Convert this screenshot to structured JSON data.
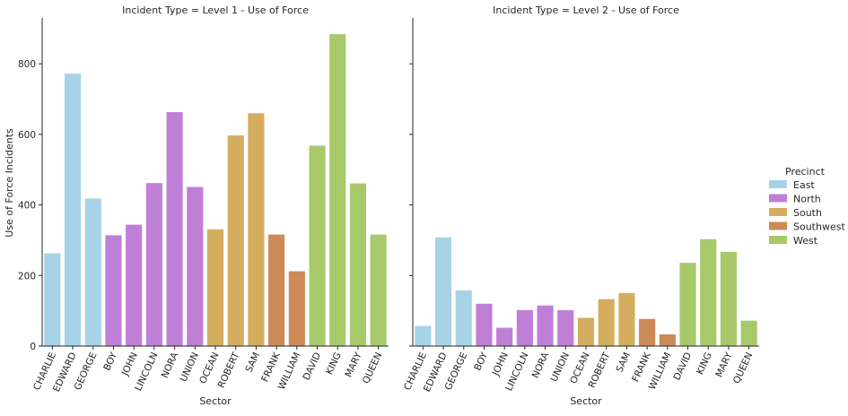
{
  "chart_data": {
    "type": "bar",
    "ylabel": "Use of Force Incidents",
    "xlabel": "Sector",
    "ylim": [
      0,
      930
    ],
    "yticks": [
      0,
      200,
      400,
      600,
      800
    ],
    "grid": false,
    "legend": {
      "title": "Precinct",
      "placement": "right",
      "entries": [
        {
          "name": "East",
          "color": "#a6d3e8"
        },
        {
          "name": "North",
          "color": "#c07fd6"
        },
        {
          "name": "South",
          "color": "#d4ae5e"
        },
        {
          "name": "Southwest",
          "color": "#cc8a58"
        },
        {
          "name": "West",
          "color": "#a8c96a"
        }
      ]
    },
    "categories": [
      "CHARLIE",
      "EDWARD",
      "GEORGE",
      "BOY",
      "JOHN",
      "LINCOLN",
      "NORA",
      "UNION",
      "OCEAN",
      "ROBERT",
      "SAM",
      "FRANK",
      "WILLIAM",
      "DAVID",
      "KING",
      "MARY",
      "QUEEN"
    ],
    "category_precinct": [
      "East",
      "East",
      "East",
      "North",
      "North",
      "North",
      "North",
      "North",
      "South",
      "South",
      "South",
      "Southwest",
      "Southwest",
      "West",
      "West",
      "West",
      "West"
    ],
    "panels": [
      {
        "title": "Incident Type = Level 1 - Use of Force",
        "values": [
          263,
          772,
          418,
          314,
          344,
          462,
          663,
          451,
          331,
          597,
          660,
          316,
          212,
          568,
          884,
          461,
          316
        ]
      },
      {
        "title": "Incident Type = Level 2 - Use of Force",
        "values": [
          57,
          308,
          158,
          120,
          52,
          102,
          115,
          102,
          80,
          133,
          150,
          77,
          33,
          236,
          303,
          267,
          72
        ]
      }
    ]
  }
}
